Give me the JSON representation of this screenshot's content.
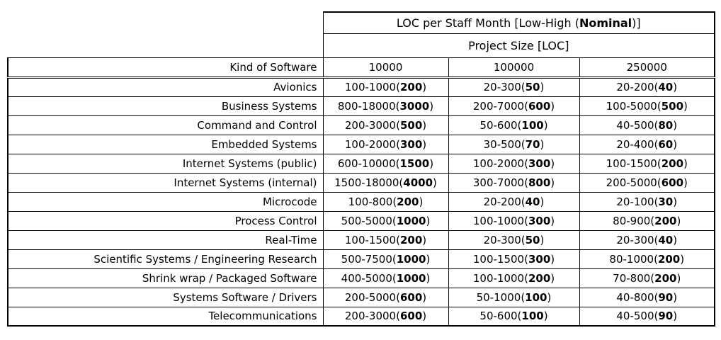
{
  "colors": {
    "border": "#000000",
    "text": "#000000",
    "background": "#ffffff"
  },
  "chart_data": {
    "type": "table",
    "title": "LOC per Staff Month [Low-High (Nominal)]",
    "title_pre": "LOC per Staff Month [Low-High (",
    "title_bold": "Nominal",
    "title_post": ")]",
    "subtitle": "Project Size [LOC]",
    "columns": [
      "Kind of Software",
      "10000",
      "100000",
      "250000"
    ],
    "rows": [
      {
        "kind": "Avionics",
        "cells": [
          {
            "pre": "100-1000(",
            "nominal": "200",
            "post": ")"
          },
          {
            "pre": "20-300(",
            "nominal": "50",
            "post": ")"
          },
          {
            "pre": "20-200(",
            "nominal": "40",
            "post": ")"
          }
        ]
      },
      {
        "kind": "Business Systems",
        "cells": [
          {
            "pre": "800-18000(",
            "nominal": "3000",
            "post": ")"
          },
          {
            "pre": "200-7000(",
            "nominal": "600",
            "post": ")"
          },
          {
            "pre": "100-5000(",
            "nominal": "500",
            "post": ")"
          }
        ]
      },
      {
        "kind": "Command and Control",
        "cells": [
          {
            "pre": "200-3000(",
            "nominal": "500",
            "post": ")"
          },
          {
            "pre": "50-600(",
            "nominal": "100",
            "post": ")"
          },
          {
            "pre": "40-500(",
            "nominal": "80",
            "post": ")"
          }
        ]
      },
      {
        "kind": "Embedded Systems",
        "cells": [
          {
            "pre": "100-2000(",
            "nominal": "300",
            "post": ")"
          },
          {
            "pre": "30-500(",
            "nominal": "70",
            "post": ")"
          },
          {
            "pre": "20-400(",
            "nominal": "60",
            "post": ")"
          }
        ]
      },
      {
        "kind": "Internet Systems (public)",
        "cells": [
          {
            "pre": "600-10000(",
            "nominal": "1500",
            "post": ")"
          },
          {
            "pre": "100-2000(",
            "nominal": "300",
            "post": ")"
          },
          {
            "pre": "100-1500(",
            "nominal": "200",
            "post": ")"
          }
        ]
      },
      {
        "kind": "Internet Systems (internal)",
        "cells": [
          {
            "pre": "1500-18000(",
            "nominal": "4000",
            "post": ")"
          },
          {
            "pre": "300-7000(",
            "nominal": "800",
            "post": ")"
          },
          {
            "pre": "200-5000(",
            "nominal": "600",
            "post": ")"
          }
        ]
      },
      {
        "kind": "Microcode",
        "cells": [
          {
            "pre": "100-800(",
            "nominal": "200",
            "post": ")"
          },
          {
            "pre": "20-200(",
            "nominal": "40",
            "post": ")"
          },
          {
            "pre": "20-100(",
            "nominal": "30",
            "post": ")"
          }
        ]
      },
      {
        "kind": "Process Control",
        "cells": [
          {
            "pre": "500-5000(",
            "nominal": "1000",
            "post": ")"
          },
          {
            "pre": "100-1000(",
            "nominal": "300",
            "post": ")"
          },
          {
            "pre": "80-900(",
            "nominal": "200",
            "post": ")"
          }
        ]
      },
      {
        "kind": "Real-Time",
        "cells": [
          {
            "pre": "100-1500(",
            "nominal": "200",
            "post": ")"
          },
          {
            "pre": "20-300(",
            "nominal": "50",
            "post": ")"
          },
          {
            "pre": "20-300(",
            "nominal": "40",
            "post": ")"
          }
        ]
      },
      {
        "kind": "Scientific Systems / Engineering Research",
        "cells": [
          {
            "pre": "500-7500(",
            "nominal": "1000",
            "post": ")"
          },
          {
            "pre": "100-1500(",
            "nominal": "300",
            "post": ")"
          },
          {
            "pre": "80-1000(",
            "nominal": "200",
            "post": ")"
          }
        ]
      },
      {
        "kind": "Shrink wrap / Packaged Software",
        "cells": [
          {
            "pre": "400-5000(",
            "nominal": "1000",
            "post": ")"
          },
          {
            "pre": "100-1000(",
            "nominal": "200",
            "post": ")"
          },
          {
            "pre": "70-800(",
            "nominal": "200",
            "post": ")"
          }
        ]
      },
      {
        "kind": "Systems Software / Drivers",
        "cells": [
          {
            "pre": "200-5000(",
            "nominal": "600",
            "post": ")"
          },
          {
            "pre": "50-1000(",
            "nominal": "100",
            "post": ")"
          },
          {
            "pre": "40-800(",
            "nominal": "90",
            "post": ")"
          }
        ]
      },
      {
        "kind": "Telecommunications",
        "cells": [
          {
            "pre": "200-3000(",
            "nominal": "600",
            "post": ")"
          },
          {
            "pre": "50-600(",
            "nominal": "100",
            "post": ")"
          },
          {
            "pre": "40-500(",
            "nominal": "90",
            "post": ")"
          }
        ]
      }
    ]
  }
}
